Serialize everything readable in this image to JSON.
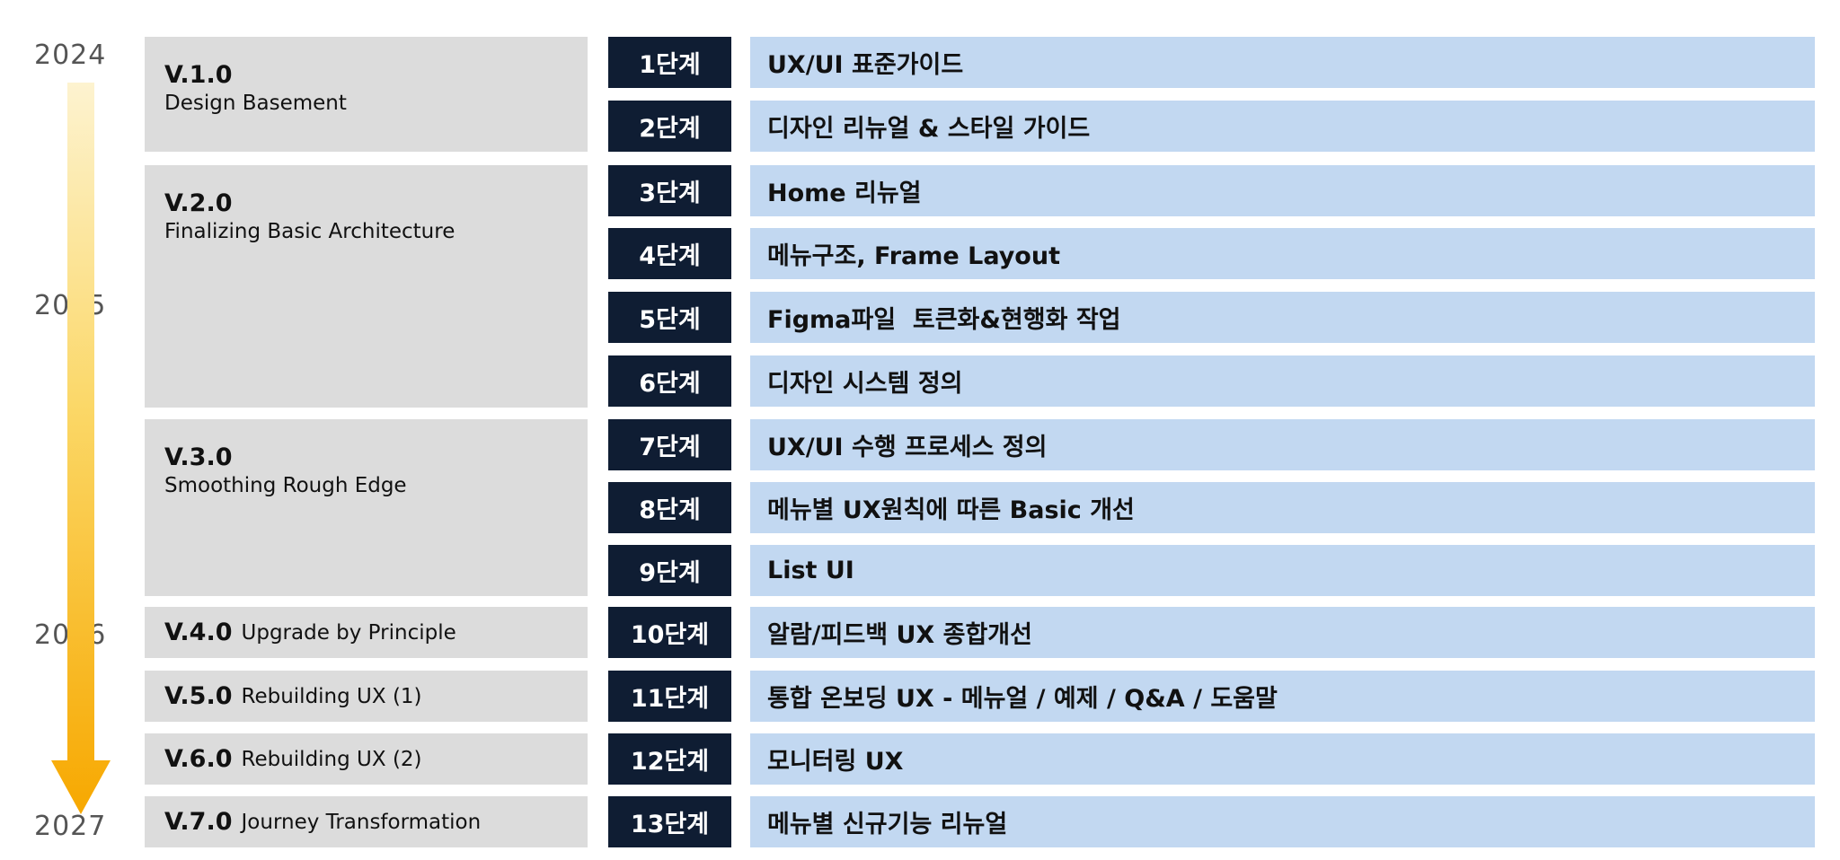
{
  "years": [
    "2024",
    "2025",
    "2026",
    "2027"
  ],
  "versions": [
    {
      "number": "V.1.0",
      "subtitle": "Design Basement"
    },
    {
      "number": "V.2.0",
      "subtitle": "Finalizing Basic Architecture"
    },
    {
      "number": "V.3.0",
      "subtitle": "Smoothing Rough Edge"
    },
    {
      "number": "V.4.0",
      "subtitle": "Upgrade by Principle"
    },
    {
      "number": "V.5.0",
      "subtitle": "Rebuilding UX (1)"
    },
    {
      "number": "V.6.0",
      "subtitle": "Rebuilding UX (2)"
    },
    {
      "number": "V.7.0",
      "subtitle": "Journey Transformation"
    }
  ],
  "steps": [
    {
      "label": "1단계",
      "title": "UX/UI 표준가이드"
    },
    {
      "label": "2단계",
      "title": "디자인 리뉴얼 & 스타일 가이드"
    },
    {
      "label": "3단계",
      "title": "Home 리뉴얼"
    },
    {
      "label": "4단계",
      "title": "메뉴구조, Frame Layout"
    },
    {
      "label": "5단계",
      "title": "Figma파일  토큰화&현행화 작업"
    },
    {
      "label": "6단계",
      "title": "디자인 시스템 정의"
    },
    {
      "label": "7단계",
      "title": "UX/UI 수행 프로세스 정의"
    },
    {
      "label": "8단계",
      "title": "메뉴별 UX원칙에 따른 Basic 개선"
    },
    {
      "label": "9단계",
      "title": "List UI"
    },
    {
      "label": "10단계",
      "title": "알람/피드백 UX 종합개선"
    },
    {
      "label": "11단계",
      "title": "통합 온보딩 UX - 메뉴얼 / 예제 / Q&A / 도움말"
    },
    {
      "label": "12단계",
      "title": "모니터링 UX"
    },
    {
      "label": "13단계",
      "title": "메뉴별 신규기능 리뉴얼"
    }
  ],
  "colors": {
    "version_bg": "#dcdcdc",
    "step_bg": "#0f1d33",
    "desc_bg": "#c2d8f1",
    "arrow_top": "#fdf3d0",
    "arrow_bottom": "#f7a800"
  }
}
